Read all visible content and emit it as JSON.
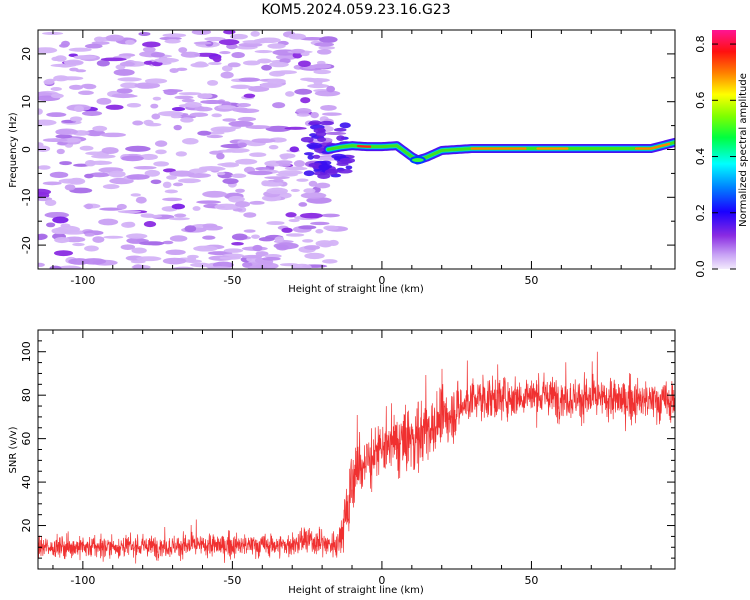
{
  "page_title": "KOM5.2024.059.23.16.G23",
  "chart_data": [
    {
      "type": "heatmap",
      "title": "KOM5.2024.059.23.16.G23",
      "xlabel": "Height of straight line (km)",
      "ylabel": "Frequency (Hz)",
      "xlim": [
        -115,
        98
      ],
      "ylim": [
        -25,
        25
      ],
      "xticks": [
        -100,
        -50,
        0,
        50
      ],
      "yticks": [
        -20,
        -10,
        0,
        10,
        20
      ],
      "colorbar": {
        "label": "Normalized spectral amplitude",
        "range": [
          0.0,
          0.85
        ],
        "ticks": [
          0.0,
          0.2,
          0.4,
          0.6,
          0.8
        ],
        "colors": [
          "#f3eafc",
          "#c8a2f5",
          "#8a2be2",
          "#1a00ff",
          "#0080ff",
          "#00ffff",
          "#00ff40",
          "#80ff00",
          "#ffff00",
          "#ff8000",
          "#ff1010",
          "#ff1493"
        ]
      },
      "ridge": [
        {
          "x": -18,
          "y": 0.0
        },
        {
          "x": -14,
          "y": 0.5
        },
        {
          "x": -10,
          "y": 0.8
        },
        {
          "x": -5,
          "y": 0.6
        },
        {
          "x": 0,
          "y": 0.6
        },
        {
          "x": 5,
          "y": 0.8
        },
        {
          "x": 10,
          "y": -1.5
        },
        {
          "x": 12,
          "y": -2.2
        },
        {
          "x": 15,
          "y": -1.6
        },
        {
          "x": 20,
          "y": -0.2
        },
        {
          "x": 30,
          "y": 0.2
        },
        {
          "x": 50,
          "y": 0.2
        },
        {
          "x": 70,
          "y": 0.2
        },
        {
          "x": 90,
          "y": 0.2
        },
        {
          "x": 98,
          "y": 1.5
        }
      ]
    },
    {
      "type": "line",
      "xlabel": "Height of straight line (km)",
      "ylabel": "SNR (v/v)",
      "xlim": [
        -115,
        98
      ],
      "ylim": [
        0,
        110
      ],
      "xticks": [
        -100,
        -50,
        0,
        50
      ],
      "yticks": [
        20,
        40,
        60,
        80,
        100
      ],
      "line_color": "#f03030",
      "series_envelope": [
        {
          "x": -115,
          "mean": 10,
          "noise": 6
        },
        {
          "x": -30,
          "mean": 11,
          "noise": 7
        },
        {
          "x": -26,
          "mean": 13,
          "noise": 8
        },
        {
          "x": -15,
          "mean": 11,
          "noise": 7
        },
        {
          "x": -12,
          "mean": 25,
          "noise": 20
        },
        {
          "x": -9,
          "mean": 45,
          "noise": 25
        },
        {
          "x": -5,
          "mean": 50,
          "noise": 18
        },
        {
          "x": 0,
          "mean": 55,
          "noise": 15
        },
        {
          "x": 10,
          "mean": 60,
          "noise": 22
        },
        {
          "x": 20,
          "mean": 68,
          "noise": 18
        },
        {
          "x": 30,
          "mean": 78,
          "noise": 12
        },
        {
          "x": 50,
          "mean": 80,
          "noise": 12
        },
        {
          "x": 70,
          "mean": 78,
          "noise": 12
        },
        {
          "x": 98,
          "mean": 77,
          "noise": 12
        }
      ]
    }
  ]
}
